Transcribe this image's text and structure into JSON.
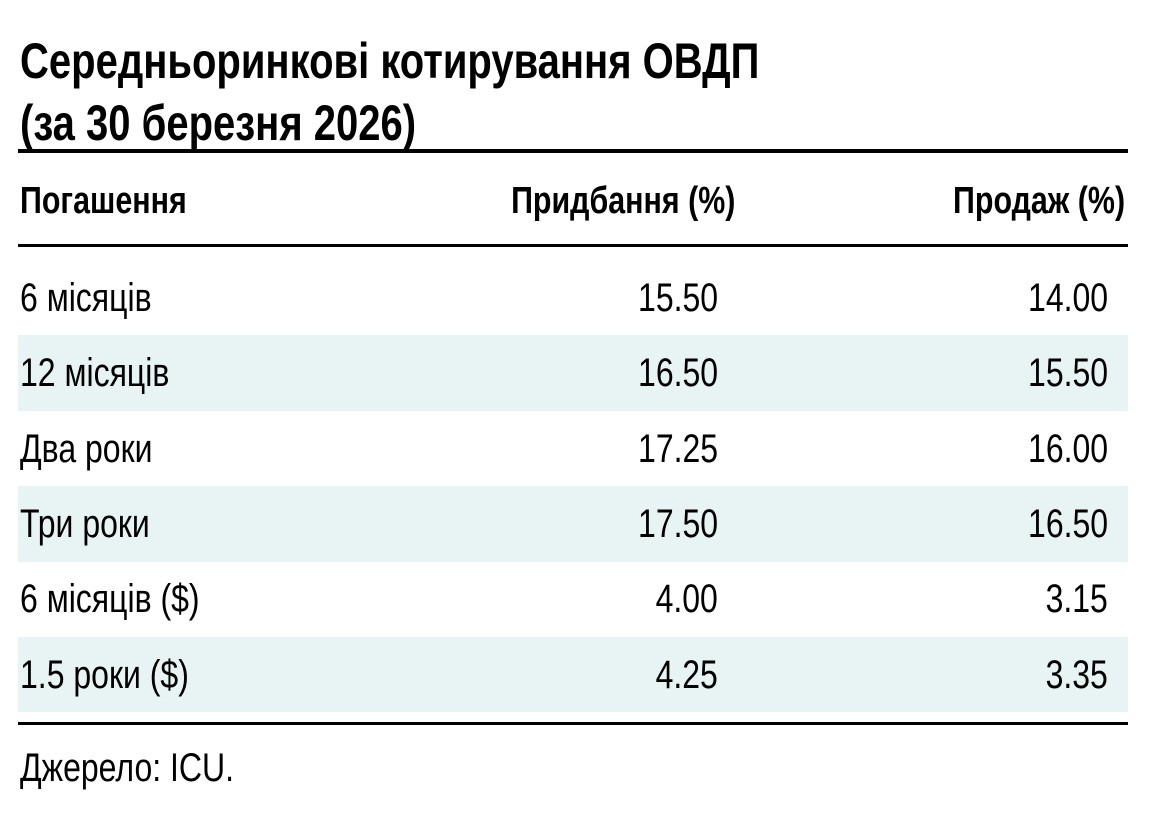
{
  "header": {
    "title_lines": [
      "Середньоринкові котирування ОВДП",
      "(за 30 березня 2026)"
    ]
  },
  "table": {
    "columns": [
      "Погашення",
      "Придбання (%)",
      "Продаж (%)"
    ],
    "rows": [
      [
        "6 місяців",
        "15.50",
        "14.00"
      ],
      [
        "12 місяців",
        "16.50",
        "15.50"
      ],
      [
        "Два роки",
        "17.25",
        "16.00"
      ],
      [
        "Три роки",
        "17.50",
        "16.50"
      ],
      [
        "6 місяців ($)",
        "4.00",
        "3.15"
      ],
      [
        "1.5 роки ($)",
        "4.25",
        "3.35"
      ]
    ]
  },
  "footer": {
    "source": "Джерело: ICU."
  }
}
